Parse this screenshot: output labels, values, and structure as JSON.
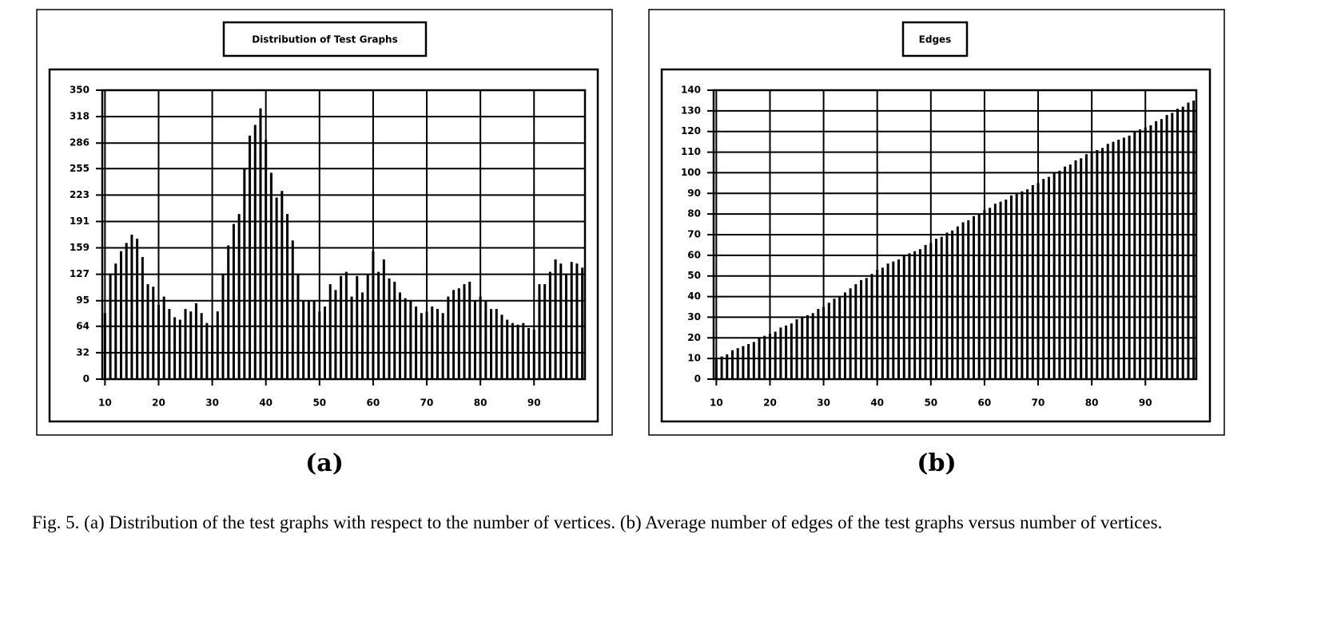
{
  "chart_data": [
    {
      "type": "bar",
      "title": "Distribution of Test Graphs",
      "panel_label": "(a)",
      "color": "#000000",
      "grid": true,
      "x": [
        10,
        11,
        12,
        13,
        14,
        15,
        16,
        17,
        18,
        19,
        20,
        21,
        22,
        23,
        24,
        25,
        26,
        27,
        28,
        29,
        30,
        31,
        32,
        33,
        34,
        35,
        36,
        37,
        38,
        39,
        40,
        41,
        42,
        43,
        44,
        45,
        46,
        47,
        48,
        49,
        50,
        51,
        52,
        53,
        54,
        55,
        56,
        57,
        58,
        59,
        60,
        61,
        62,
        63,
        64,
        65,
        66,
        67,
        68,
        69,
        70,
        71,
        72,
        73,
        74,
        75,
        76,
        77,
        78,
        79,
        80,
        81,
        82,
        83,
        84,
        85,
        86,
        87,
        88,
        89,
        90,
        91,
        92,
        93,
        94,
        95,
        96,
        97,
        98,
        99
      ],
      "values": [
        80,
        128,
        140,
        155,
        165,
        175,
        170,
        148,
        115,
        112,
        90,
        100,
        85,
        75,
        72,
        85,
        82,
        92,
        80,
        68,
        65,
        82,
        128,
        162,
        188,
        200,
        255,
        295,
        308,
        328,
        290,
        250,
        220,
        228,
        200,
        168,
        127,
        95,
        95,
        95,
        82,
        88,
        115,
        108,
        125,
        130,
        100,
        125,
        105,
        127,
        155,
        130,
        145,
        122,
        118,
        105,
        98,
        95,
        88,
        80,
        82,
        88,
        85,
        80,
        100,
        108,
        110,
        115,
        118,
        95,
        100,
        95,
        85,
        85,
        78,
        72,
        68,
        66,
        68,
        62,
        60,
        115,
        115,
        130,
        145,
        140,
        128,
        142,
        140,
        135
      ],
      "xlim": [
        9.5,
        99.5
      ],
      "xticks": [
        10,
        20,
        30,
        40,
        50,
        60,
        70,
        80,
        90
      ],
      "ylim": [
        0,
        350
      ],
      "yticks": [
        0,
        32,
        64,
        95,
        127,
        159,
        191,
        223,
        255,
        286,
        318,
        350
      ]
    },
    {
      "type": "bar",
      "title": "Edges",
      "panel_label": "(b)",
      "color": "#000000",
      "grid": true,
      "x": [
        10,
        11,
        12,
        13,
        14,
        15,
        16,
        17,
        18,
        19,
        20,
        21,
        22,
        23,
        24,
        25,
        26,
        27,
        28,
        29,
        30,
        31,
        32,
        33,
        34,
        35,
        36,
        37,
        38,
        39,
        40,
        41,
        42,
        43,
        44,
        45,
        46,
        47,
        48,
        49,
        50,
        51,
        52,
        53,
        54,
        55,
        56,
        57,
        58,
        59,
        60,
        61,
        62,
        63,
        64,
        65,
        66,
        67,
        68,
        69,
        70,
        71,
        72,
        73,
        74,
        75,
        76,
        77,
        78,
        79,
        80,
        81,
        82,
        83,
        84,
        85,
        86,
        87,
        88,
        89,
        90,
        91,
        92,
        93,
        94,
        95,
        96,
        97,
        98,
        99
      ],
      "values": [
        10,
        11,
        12,
        14,
        15,
        16,
        17,
        18,
        20,
        21,
        22,
        23,
        25,
        26,
        27,
        29,
        30,
        31,
        32,
        34,
        35,
        37,
        39,
        40,
        42,
        44,
        46,
        48,
        49,
        51,
        53,
        54,
        56,
        57,
        58,
        60,
        61,
        62,
        63,
        65,
        66,
        68,
        69,
        71,
        72,
        74,
        76,
        77,
        79,
        80,
        82,
        83,
        85,
        86,
        87,
        89,
        90,
        91,
        92,
        94,
        95,
        97,
        98,
        100,
        101,
        103,
        104,
        106,
        107,
        109,
        110,
        111,
        112,
        114,
        115,
        116,
        117,
        118,
        120,
        121,
        122,
        123,
        125,
        126,
        128,
        129,
        131,
        132,
        134,
        135
      ],
      "xlim": [
        9.5,
        99.5
      ],
      "xticks": [
        10,
        20,
        30,
        40,
        50,
        60,
        70,
        80,
        90
      ],
      "ylim": [
        0,
        140
      ],
      "yticks": [
        0,
        10,
        20,
        30,
        40,
        50,
        60,
        70,
        80,
        90,
        100,
        110,
        120,
        130,
        140
      ]
    }
  ],
  "caption": "Fig. 5. (a) Distribution of the test graphs with respect to the number of vertices. (b) Average number of edges of the test graphs versus number of vertices."
}
